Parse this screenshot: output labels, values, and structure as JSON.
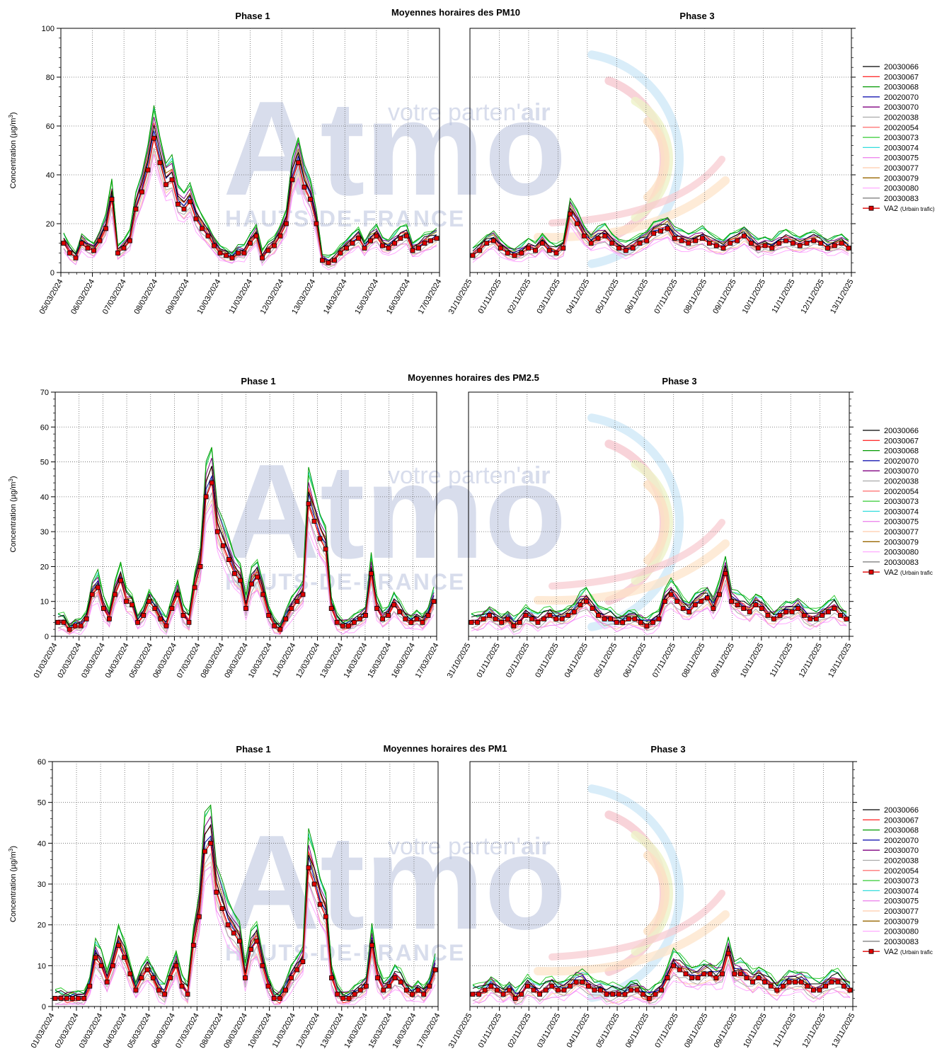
{
  "colors": {
    "series": [
      "#000000",
      "#ff3333",
      "#009900",
      "#0000aa",
      "#800080",
      "#aaaaaa",
      "#ff7777",
      "#33cc33",
      "#33dddd",
      "#ee88ee",
      "#ffccaa",
      "#996600",
      "#ffaaff",
      "#777777"
    ],
    "va2_fill": "#e00000",
    "grid": "#555555",
    "watermark": "#b9c2dd"
  },
  "watermark": {
    "main": "Atmo",
    "tagline_prefix": "votre parten'",
    "tagline_suffix": "air",
    "region": "HAUTS-DE-FRANCE"
  },
  "legend": {
    "series": [
      "20030066",
      "20030067",
      "20030068",
      "20020070",
      "20030070",
      "20020038",
      "20020054",
      "20030073",
      "20030074",
      "20030075",
      "20030077",
      "20030079",
      "20030080",
      "20030083"
    ],
    "va2_label": "VA2",
    "va2_note_panel1": "(Urbain trafic)",
    "va2_note_panel2": "(Urbain trafic",
    "va2_note_panel3": "(Urbain trafic"
  },
  "chart_data": [
    {
      "type": "line",
      "title": "Moyennes horaires des PM10",
      "phase_left": "Phase 1",
      "phase_right": "Phase 3",
      "ylabel": "Concentration (µg/m",
      "ylabel_sup": "3",
      "ylabel_close": ")",
      "ylim": [
        0,
        100
      ],
      "yticks": [
        "0",
        "20",
        "40",
        "60",
        "80",
        "100"
      ],
      "grid": true,
      "legend_position": "right",
      "x_left": [
        "05/03/2024",
        "06/03/2024",
        "07/03/2024",
        "08/03/2024",
        "09/03/2024",
        "10/03/2024",
        "11/03/2024",
        "12/03/2024",
        "13/03/2024",
        "14/03/2024",
        "15/03/2024",
        "16/03/2024",
        "17/03/2024"
      ],
      "x_right": [
        "31/10/2025",
        "01/11/2025",
        "02/11/2025",
        "03/11/2025",
        "04/11/2025",
        "05/11/2025",
        "06/11/2025",
        "07/11/2025",
        "08/11/2025",
        "09/11/2025",
        "10/11/2025",
        "11/11/2025",
        "12/11/2025",
        "13/11/2025"
      ],
      "va2_left": [
        12,
        8,
        6,
        12,
        10,
        9,
        13,
        18,
        30,
        8,
        10,
        13,
        26,
        33,
        42,
        55,
        45,
        36,
        38,
        28,
        26,
        29,
        22,
        18,
        15,
        11,
        8,
        7,
        6,
        8,
        8,
        12,
        15,
        6,
        9,
        11,
        15,
        20,
        38,
        45,
        35,
        30,
        20,
        5,
        4,
        5,
        8,
        10,
        12,
        14,
        10,
        13,
        15,
        11,
        10,
        12,
        14,
        15,
        9,
        10,
        12,
        13,
        14
      ],
      "va2_right": [
        7,
        9,
        12,
        13,
        10,
        8,
        7,
        8,
        10,
        9,
        12,
        9,
        8,
        10,
        24,
        20,
        15,
        12,
        14,
        15,
        12,
        10,
        9,
        10,
        12,
        13,
        16,
        17,
        18,
        14,
        13,
        12,
        13,
        14,
        12,
        11,
        10,
        12,
        13,
        15,
        12,
        10,
        11,
        10,
        12,
        13,
        12,
        11,
        12,
        13,
        12,
        10,
        11,
        12,
        10
      ]
    },
    {
      "type": "line",
      "title": "Moyennes horaires des PM2.5",
      "phase_left": "Phase 1",
      "phase_right": "Phase 3",
      "ylabel": "Concentration (µg/m",
      "ylabel_sup": "3",
      "ylabel_close": ")",
      "ylim": [
        0,
        70
      ],
      "yticks": [
        "0",
        "10",
        "20",
        "30",
        "40",
        "50",
        "60",
        "70"
      ],
      "grid": true,
      "legend_position": "right",
      "x_left": [
        "01/03/2024",
        "02/03/2024",
        "03/03/2024",
        "04/03/2024",
        "05/03/2024",
        "06/03/2024",
        "07/03/2024",
        "08/03/2024",
        "09/03/2024",
        "10/03/2024",
        "11/03/2024",
        "12/03/2024",
        "13/03/2024",
        "14/03/2024",
        "15/03/2024",
        "16/03/2024",
        "17/03/2024"
      ],
      "x_right": [
        "31/10/2025",
        "01/11/2025",
        "02/11/2025",
        "03/11/2025",
        "04/11/2025",
        "05/11/2025",
        "06/11/2025",
        "07/11/2025",
        "08/11/2025",
        "09/11/2025",
        "10/11/2025",
        "11/11/2025",
        "12/11/2025",
        "13/11/2025"
      ],
      "va2_left": [
        4,
        4,
        2,
        3,
        3,
        5,
        12,
        14,
        8,
        5,
        12,
        16,
        10,
        9,
        4,
        6,
        10,
        8,
        5,
        3,
        8,
        12,
        6,
        4,
        14,
        20,
        40,
        44,
        30,
        26,
        22,
        18,
        16,
        8,
        15,
        17,
        12,
        6,
        3,
        2,
        5,
        8,
        10,
        12,
        38,
        33,
        28,
        25,
        8,
        4,
        3,
        3,
        4,
        5,
        6,
        18,
        8,
        5,
        6,
        9,
        7,
        5,
        4,
        5,
        4,
        6,
        10
      ],
      "va2_right": [
        4,
        4,
        5,
        6,
        5,
        4,
        5,
        3,
        4,
        6,
        5,
        4,
        5,
        6,
        5,
        5,
        6,
        7,
        9,
        10,
        8,
        6,
        5,
        5,
        4,
        4,
        5,
        5,
        4,
        3,
        4,
        5,
        10,
        12,
        10,
        8,
        7,
        9,
        10,
        11,
        8,
        12,
        18,
        10,
        9,
        8,
        7,
        9,
        8,
        6,
        5,
        6,
        7,
        7,
        8,
        6,
        5,
        5,
        6,
        7,
        8,
        6,
        5
      ]
    },
    {
      "type": "line",
      "title": "Moyennes horaires des PM1",
      "phase_left": "Phase 1",
      "phase_right": "Phase 3",
      "ylabel": "Concentration (µg/m",
      "ylabel_sup": "3",
      "ylabel_close": ")",
      "ylim": [
        0,
        60
      ],
      "yticks": [
        "0",
        "10",
        "20",
        "30",
        "40",
        "50",
        "60"
      ],
      "grid": true,
      "legend_position": "right",
      "x_left": [
        "01/03/2024",
        "02/03/2024",
        "03/03/2024",
        "04/03/2024",
        "05/03/2024",
        "06/03/2024",
        "07/03/2024",
        "08/03/2024",
        "09/03/2024",
        "10/03/2024",
        "11/03/2024",
        "12/03/2024",
        "13/03/2024",
        "14/03/2024",
        "15/03/2024",
        "16/03/2024",
        "17/03/2024"
      ],
      "x_right": [
        "31/10/2025",
        "01/11/2025",
        "02/11/2025",
        "03/11/2025",
        "04/11/2025",
        "05/11/2025",
        "06/11/2025",
        "07/11/2025",
        "08/11/2025",
        "09/11/2025",
        "10/11/2025",
        "11/11/2025",
        "12/11/2025",
        "13/11/2025"
      ],
      "va2_left": [
        2,
        2,
        2,
        2,
        2,
        2,
        5,
        12,
        10,
        6,
        10,
        15,
        12,
        8,
        4,
        7,
        9,
        7,
        4,
        3,
        7,
        10,
        5,
        3,
        15,
        22,
        38,
        40,
        28,
        24,
        20,
        18,
        16,
        7,
        14,
        16,
        10,
        5,
        2,
        2,
        4,
        7,
        9,
        11,
        34,
        30,
        25,
        22,
        7,
        3,
        2,
        2,
        3,
        4,
        5,
        15,
        7,
        4,
        5,
        7,
        6,
        4,
        3,
        4,
        3,
        5,
        9
      ],
      "va2_right": [
        3,
        3,
        4,
        5,
        4,
        3,
        4,
        2,
        3,
        5,
        4,
        3,
        4,
        5,
        4,
        4,
        5,
        6,
        6,
        5,
        4,
        4,
        3,
        3,
        3,
        3,
        4,
        4,
        3,
        2,
        3,
        4,
        7,
        10,
        9,
        8,
        7,
        7,
        8,
        8,
        7,
        8,
        13,
        8,
        8,
        7,
        6,
        7,
        6,
        5,
        4,
        5,
        6,
        6,
        6,
        5,
        4,
        4,
        5,
        6,
        6,
        5,
        4
      ]
    }
  ]
}
